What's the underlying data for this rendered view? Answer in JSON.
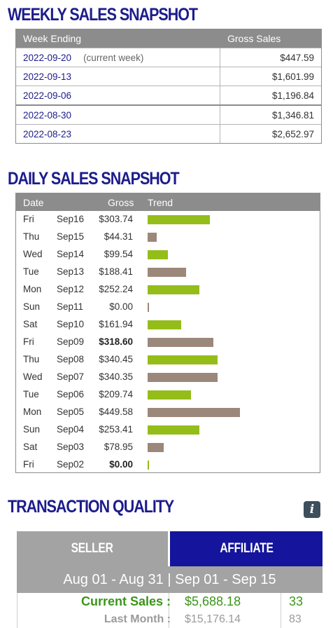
{
  "weekly": {
    "title": "WEEKLY SALES SNAPSHOT",
    "col_week": "Week Ending",
    "col_gross": "Gross Sales",
    "rows": [
      {
        "date": "2022-09-20",
        "note": "(current week)",
        "gross": "$447.59"
      },
      {
        "date": "2022-09-13",
        "note": "",
        "gross": "$1,601.99"
      },
      {
        "date": "2022-09-06",
        "note": "",
        "gross": "$1,196.84"
      },
      {
        "date": "2022-08-30",
        "note": "",
        "gross": "$1,346.81"
      },
      {
        "date": "2022-08-23",
        "note": "",
        "gross": "$2,652.97"
      }
    ]
  },
  "daily": {
    "title": "DAILY SALES SNAPSHOT",
    "col_date": "Date",
    "col_gross": "Gross",
    "col_trend": "Trend",
    "bar_colors": {
      "green": "#94bd1a",
      "brown": "#9c877b"
    },
    "rows": [
      {
        "dow": "Fri",
        "md": "Sep16",
        "gross": "$303.74",
        "value": 303.74,
        "color": "green",
        "bold": false
      },
      {
        "dow": "Thu",
        "md": "Sep15",
        "gross": "$44.31",
        "value": 44.31,
        "color": "brown",
        "bold": false
      },
      {
        "dow": "Wed",
        "md": "Sep14",
        "gross": "$99.54",
        "value": 99.54,
        "color": "green",
        "bold": false
      },
      {
        "dow": "Tue",
        "md": "Sep13",
        "gross": "$188.41",
        "value": 188.41,
        "color": "brown",
        "bold": false
      },
      {
        "dow": "Mon",
        "md": "Sep12",
        "gross": "$252.24",
        "value": 252.24,
        "color": "green",
        "bold": false
      },
      {
        "dow": "Sun",
        "md": "Sep11",
        "gross": "$0.00",
        "value": 0,
        "color": "brown",
        "bold": false
      },
      {
        "dow": "Sat",
        "md": "Sep10",
        "gross": "$161.94",
        "value": 161.94,
        "color": "green",
        "bold": false
      },
      {
        "dow": "Fri",
        "md": "Sep09",
        "gross": "$318.60",
        "value": 318.6,
        "color": "brown",
        "bold": true
      },
      {
        "dow": "Thu",
        "md": "Sep08",
        "gross": "$340.45",
        "value": 340.45,
        "color": "green",
        "bold": false
      },
      {
        "dow": "Wed",
        "md": "Sep07",
        "gross": "$340.35",
        "value": 340.35,
        "color": "brown",
        "bold": false
      },
      {
        "dow": "Tue",
        "md": "Sep06",
        "gross": "$209.74",
        "value": 209.74,
        "color": "green",
        "bold": false
      },
      {
        "dow": "Mon",
        "md": "Sep05",
        "gross": "$449.58",
        "value": 449.58,
        "color": "brown",
        "bold": false
      },
      {
        "dow": "Sun",
        "md": "Sep04",
        "gross": "$253.41",
        "value": 253.41,
        "color": "green",
        "bold": false
      },
      {
        "dow": "Sat",
        "md": "Sep03",
        "gross": "$78.95",
        "value": 78.95,
        "color": "brown",
        "bold": false
      },
      {
        "dow": "Fri",
        "md": "Sep02",
        "gross": "$0.00",
        "value": 0,
        "color": "green",
        "bold": true
      }
    ]
  },
  "quality": {
    "title": "TRANSACTION QUALITY",
    "info_icon": "info-icon",
    "tab_seller": "SELLER",
    "tab_affiliate": "AFFILIATE",
    "active_tab": "AFFILIATE",
    "range": "Aug 01 - Aug 31 | Sep 01 - Sep 15",
    "current_label": "Current Sales :",
    "current_value": "$5,688.18",
    "current_count": "33",
    "last_label": "Last Month :",
    "last_value": "$15,176.14",
    "last_count": "83"
  }
}
